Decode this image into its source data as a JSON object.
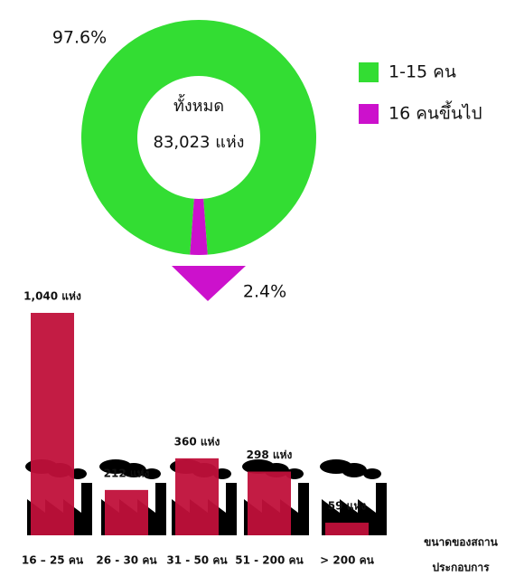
{
  "chart_data": [
    {
      "type": "donut",
      "center_title": "ทั้งหมด",
      "center_value": "83,023 แห่ง",
      "categories": [
        "1-15 คน",
        "16 คนขึ้นไป"
      ],
      "values": [
        97.6,
        2.4
      ],
      "value_labels": [
        "97.6%",
        "2.4%"
      ],
      "colors": [
        "#33dd33",
        "#cc11cc"
      ]
    },
    {
      "type": "bar",
      "categories": [
        "16 – 25 คน",
        "26 - 30 คน",
        "31 - 50 คน",
        "51 - 200 คน",
        "> 200 คน"
      ],
      "values": [
        1040,
        212,
        360,
        298,
        59
      ],
      "value_labels": [
        "1,040 แห่ง",
        "212 แห่ง",
        "360 แห่ง",
        "298 แห่ง",
        "59 แห่ง"
      ],
      "color": "#c0103a",
      "x_label": [
        "ขนาดของสถาน",
        "ประกอบการ"
      ]
    }
  ]
}
